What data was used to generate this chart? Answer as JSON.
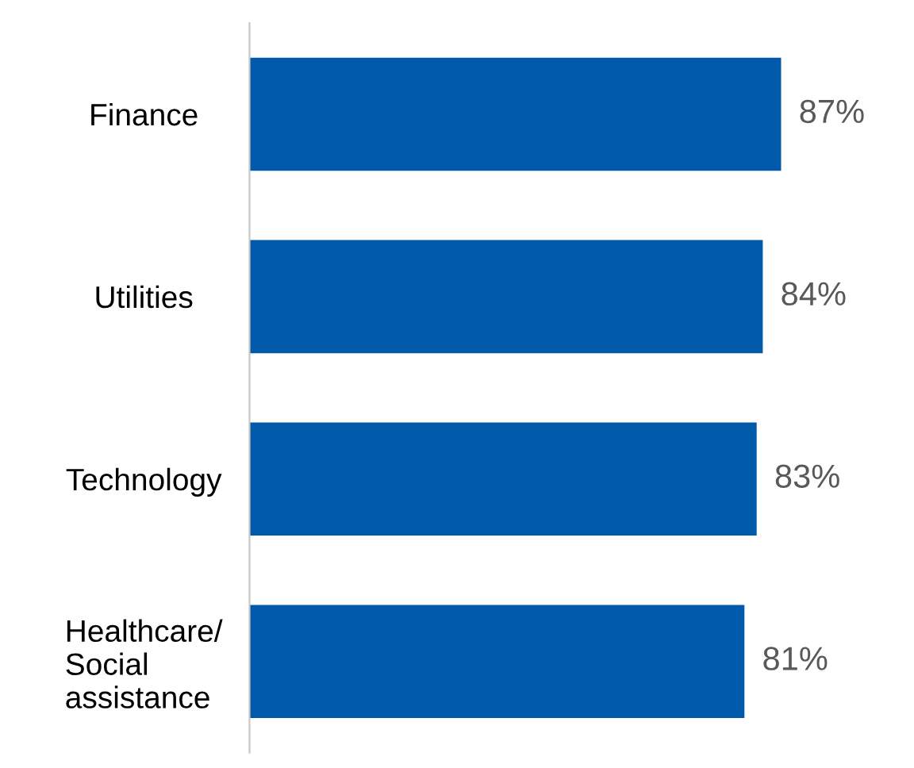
{
  "chart_data": {
    "type": "bar",
    "orientation": "horizontal",
    "categories": [
      "Finance",
      "Utilities",
      "Technology",
      "Healthcare/\nSocial\nassistance"
    ],
    "values": [
      87,
      84,
      83,
      81
    ],
    "color": "#005aa9",
    "value_labels": [
      "87%",
      "84%",
      "83%",
      "81%"
    ],
    "tick_labels": "y",
    "grid": false,
    "legend": false
  }
}
